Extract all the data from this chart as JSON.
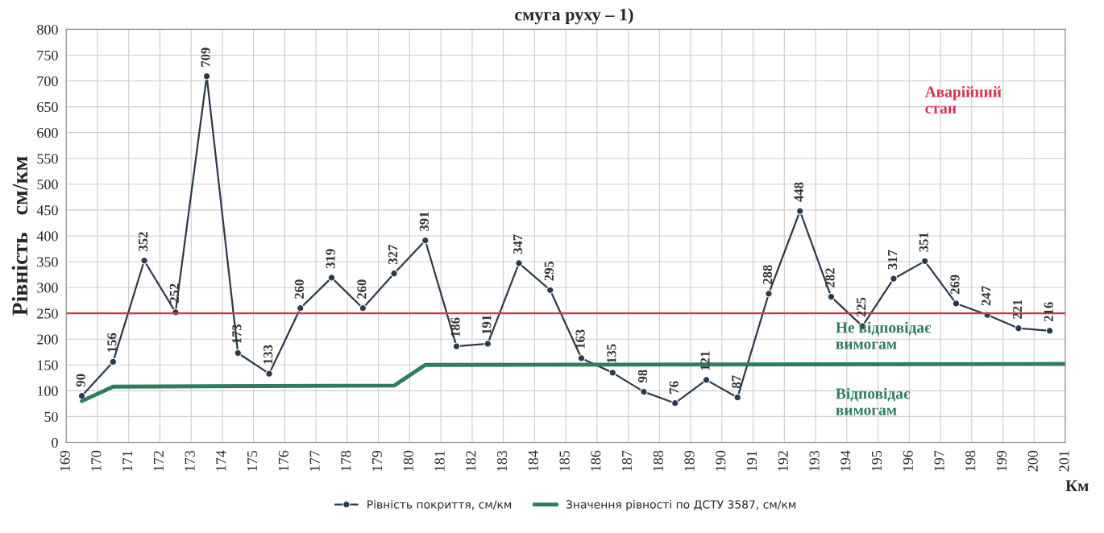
{
  "chart_data": {
    "type": "line",
    "title": "смуга руху – 1)",
    "xlabel": "Км",
    "ylabel": "Рівність   см/км",
    "xlim": [
      169,
      201
    ],
    "xticks": [
      169,
      170,
      171,
      172,
      173,
      174,
      175,
      176,
      177,
      178,
      179,
      180,
      181,
      182,
      183,
      184,
      185,
      186,
      187,
      188,
      189,
      190,
      191,
      192,
      193,
      194,
      195,
      196,
      197,
      198,
      199,
      200,
      201
    ],
    "ylim": [
      0,
      800
    ],
    "yticks": [
      0,
      50,
      100,
      150,
      200,
      250,
      300,
      350,
      400,
      450,
      500,
      550,
      600,
      650,
      700,
      750,
      800
    ],
    "grid": true,
    "legend": "bottom",
    "series": [
      {
        "name": "Рівність покриття, см/км",
        "color": "#2b3a4a",
        "marker": "circle",
        "data_labels": true,
        "x": [
          169.5,
          170.5,
          171.5,
          172.5,
          173.5,
          174.5,
          175.5,
          176.5,
          177.5,
          178.5,
          179.5,
          180.5,
          181.5,
          182.5,
          183.5,
          184.5,
          185.5,
          186.5,
          187.5,
          188.5,
          189.5,
          190.5,
          191.5,
          192.5,
          193.5,
          194.5,
          195.5,
          196.5,
          197.5,
          198.5,
          199.5,
          200.5
        ],
        "values": [
          90,
          156,
          352,
          252,
          709,
          173,
          133,
          260,
          319,
          260,
          327,
          391,
          186,
          191,
          347,
          295,
          163,
          135,
          98,
          76,
          121,
          87,
          288,
          448,
          282,
          225,
          317,
          351,
          269,
          247,
          221,
          216
        ]
      },
      {
        "name": "Значення рівності по ДСТУ 3587, см/км",
        "color": "#2e7d5b",
        "marker": "none",
        "x": [
          169.5,
          170.5,
          179.5,
          180.5,
          201
        ],
        "values": [
          80,
          108,
          110,
          150,
          152
        ]
      }
    ],
    "ref_lines": [
      {
        "axis": "y",
        "value": 250,
        "label": "Аварійний стан",
        "color": "#d0344f"
      }
    ],
    "annotations": [
      "Не відповідає\nвимогам",
      "Відповідає\nвимогам"
    ]
  }
}
